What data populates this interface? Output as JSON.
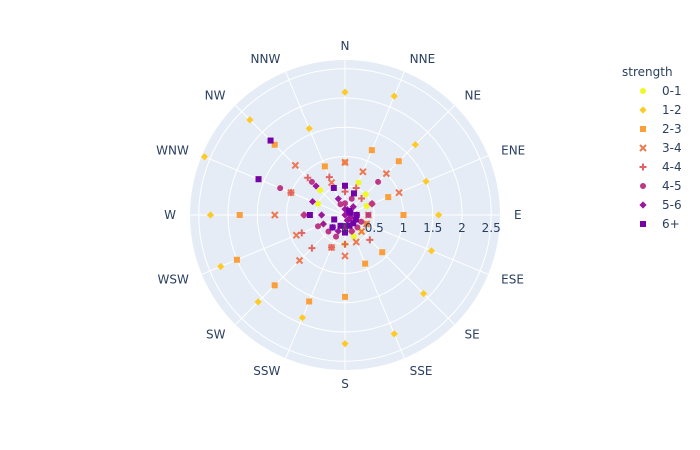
{
  "chart_data": {
    "type": "scatter",
    "projection": "polar",
    "angular_axis": {
      "categories": [
        "N",
        "NNE",
        "NE",
        "ENE",
        "E",
        "ESE",
        "SE",
        "SSE",
        "S",
        "SSW",
        "SW",
        "WSW",
        "W",
        "WNW",
        "NW",
        "NNW"
      ],
      "direction": "clockwise",
      "rotation": "N at top"
    },
    "radial_axis": {
      "range": [
        0,
        2.65
      ],
      "ticks": [
        0,
        0.5,
        1,
        1.5,
        2,
        2.5
      ],
      "tick_labels": [
        "0",
        "0.5",
        "1",
        "1.5",
        "2",
        "2.5"
      ]
    },
    "background_color": "#e5ecf6",
    "grid_color": "#ffffff",
    "legend": {
      "title": "strength",
      "placement": "right"
    },
    "series": [
      {
        "name": "0-1",
        "color": "#f0f921",
        "symbol": "circle",
        "r": [
          0.5,
          0.6,
          0.5,
          0.4,
          0.4,
          0.3,
          0.4,
          0.4,
          0.5,
          0.4,
          0.3,
          0.4,
          0.6,
          0.5,
          0.6,
          0.5
        ]
      },
      {
        "name": "1-2",
        "color": "#fdca26",
        "symbol": "diamond",
        "r": [
          2.1,
          2.2,
          1.7,
          1.5,
          1.6,
          1.6,
          1.9,
          2.2,
          2.2,
          1.9,
          2.1,
          2.3,
          2.3,
          2.6,
          2.3,
          1.6
        ]
      },
      {
        "name": "2-3",
        "color": "#fb9f3a",
        "symbol": "square",
        "r": [
          0.9,
          1.2,
          1.3,
          0.8,
          1.0,
          0.4,
          0.9,
          0.9,
          1.4,
          1.6,
          1.7,
          2.0,
          1.8,
          1.6,
          1.7,
          0.9
        ]
      },
      {
        "name": "3-4",
        "color": "#ed7953",
        "symbol": "x",
        "r": [
          0.9,
          0.8,
          1.0,
          1.0,
          0.4,
          0.4,
          0.4,
          0.5,
          0.7,
          0.6,
          1.1,
          0.9,
          1.2,
          1.0,
          1.2,
          0.6
        ]
      },
      {
        "name": "4-4",
        "color": "#e16462",
        "symbol": "cross",
        "r": [
          0.4,
          0.5,
          0.4,
          0.5,
          0.2,
          0.2,
          0.6,
          0.3,
          0.5,
          0.6,
          0.8,
          0.8,
          0.7,
          1.0,
          0.9,
          0.7
        ]
      },
      {
        "name": "4-5",
        "color": "#bd3786",
        "symbol": "circle",
        "r": [
          0.2,
          0.3,
          0.8,
          0.5,
          0.4,
          0.3,
          0.3,
          0.3,
          0.3,
          0.4,
          0.4,
          0.5,
          0.7,
          1.2,
          0.8,
          0.2
        ]
      },
      {
        "name": "5-6",
        "color": "#9c179e",
        "symbol": "diamond",
        "r": [
          0.1,
          0.1,
          0.2,
          0.1,
          0.0,
          0.1,
          0.1,
          0.1,
          0.2,
          0.3,
          0.3,
          0.4,
          0.4,
          0.6,
          0.7,
          0.3
        ]
      },
      {
        "name": "6+",
        "color": "#7201a8",
        "symbol": "square",
        "r": [
          0.5,
          0.4,
          0.1,
          0.1,
          0.2,
          0.2,
          0.2,
          0.2,
          0.3,
          0.2,
          0.3,
          0.2,
          0.6,
          1.6,
          1.8,
          0.5
        ]
      }
    ]
  }
}
